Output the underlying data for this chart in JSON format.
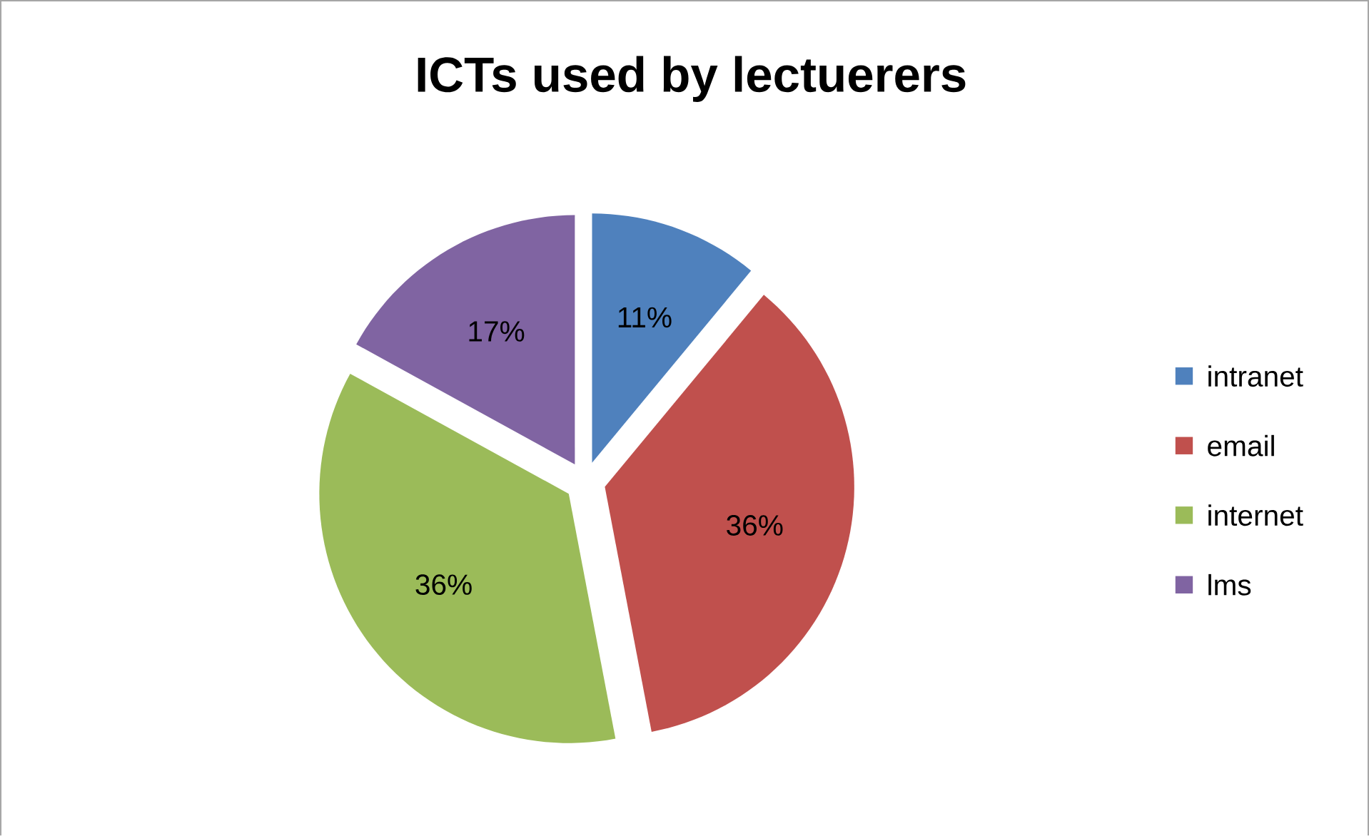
{
  "chart_data": {
    "type": "pie",
    "title": "ICTs used by lectuerers",
    "categories": [
      "intranet",
      "email",
      "internet",
      "lms"
    ],
    "values": [
      11,
      36,
      36,
      17
    ],
    "colors": [
      "#4f81bd",
      "#c0504d",
      "#9bbb59",
      "#8064a2"
    ],
    "value_labels": [
      "11%",
      "36%",
      "36%",
      "17%"
    ],
    "legend": "right"
  }
}
